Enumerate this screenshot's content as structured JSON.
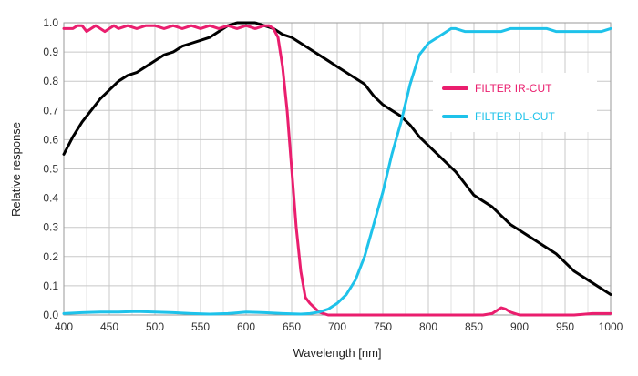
{
  "chart_data": {
    "type": "line",
    "title": "",
    "xlabel": "Wavelength [nm]",
    "ylabel": "Relative response",
    "xlim": [
      400,
      1000
    ],
    "ylim": [
      0,
      1.0
    ],
    "xticks": [
      400,
      450,
      500,
      550,
      600,
      650,
      700,
      750,
      800,
      850,
      900,
      950,
      1000
    ],
    "xtick_labels": [
      "400",
      "450",
      "500",
      "550",
      "600",
      "650",
      "700",
      "750",
      "800",
      "850",
      "900",
      "950",
      "1000"
    ],
    "yticks": [
      0,
      0.1,
      0.2,
      0.3,
      0.4,
      0.5,
      0.6,
      0.7,
      0.8,
      0.9,
      1.0
    ],
    "ytick_labels": [
      "0.0",
      "0.1",
      "0.2",
      "0.3",
      "0.4",
      "0.5",
      "0.6",
      "0.7",
      "0.8",
      "0.9",
      "1.0"
    ],
    "grid": true,
    "legend_position": "right",
    "series": [
      {
        "name": "",
        "color": "#000000",
        "x": [
          400,
          410,
          420,
          430,
          440,
          450,
          460,
          470,
          480,
          490,
          500,
          510,
          520,
          530,
          540,
          550,
          560,
          570,
          580,
          590,
          600,
          610,
          620,
          630,
          640,
          650,
          660,
          670,
          680,
          690,
          700,
          710,
          720,
          730,
          740,
          750,
          760,
          770,
          780,
          790,
          800,
          810,
          820,
          830,
          840,
          850,
          860,
          870,
          880,
          890,
          900,
          910,
          920,
          930,
          940,
          950,
          960,
          970,
          980,
          990,
          1000
        ],
        "y": [
          0.55,
          0.61,
          0.66,
          0.7,
          0.74,
          0.77,
          0.8,
          0.82,
          0.83,
          0.85,
          0.87,
          0.89,
          0.9,
          0.92,
          0.93,
          0.94,
          0.95,
          0.97,
          0.99,
          1.0,
          1.0,
          1.0,
          0.99,
          0.98,
          0.96,
          0.95,
          0.93,
          0.91,
          0.89,
          0.87,
          0.85,
          0.83,
          0.81,
          0.79,
          0.75,
          0.72,
          0.7,
          0.68,
          0.65,
          0.61,
          0.58,
          0.55,
          0.52,
          0.49,
          0.45,
          0.41,
          0.39,
          0.37,
          0.34,
          0.31,
          0.29,
          0.27,
          0.25,
          0.23,
          0.21,
          0.18,
          0.15,
          0.13,
          0.11,
          0.09,
          0.07
        ]
      },
      {
        "name": "FILTER IR-CUT",
        "color": "#ea1e6e",
        "x": [
          400,
          405,
          410,
          415,
          420,
          425,
          430,
          435,
          440,
          445,
          450,
          455,
          460,
          470,
          480,
          490,
          500,
          510,
          520,
          530,
          540,
          550,
          560,
          570,
          580,
          590,
          600,
          610,
          620,
          625,
          630,
          635,
          640,
          645,
          650,
          655,
          660,
          665,
          670,
          680,
          690,
          700,
          720,
          740,
          760,
          780,
          800,
          820,
          840,
          860,
          870,
          875,
          880,
          885,
          890,
          895,
          900,
          920,
          940,
          960,
          980,
          1000
        ],
        "y": [
          0.98,
          0.98,
          0.98,
          0.99,
          0.99,
          0.97,
          0.98,
          0.99,
          0.98,
          0.97,
          0.98,
          0.99,
          0.98,
          0.99,
          0.98,
          0.99,
          0.99,
          0.98,
          0.99,
          0.98,
          0.99,
          0.98,
          0.99,
          0.98,
          0.99,
          0.98,
          0.99,
          0.98,
          0.99,
          0.99,
          0.98,
          0.95,
          0.85,
          0.7,
          0.5,
          0.3,
          0.15,
          0.06,
          0.04,
          0.01,
          0.0,
          0.0,
          0.0,
          0.0,
          0.0,
          0.0,
          0.0,
          0.0,
          0.0,
          0.0,
          0.005,
          0.015,
          0.025,
          0.02,
          0.01,
          0.005,
          0.0,
          0.0,
          0.0,
          0.0,
          0.005,
          0.005
        ]
      },
      {
        "name": "FILTER DL-CUT",
        "color": "#1ec2ea",
        "x": [
          400,
          420,
          440,
          460,
          480,
          500,
          520,
          540,
          560,
          580,
          600,
          620,
          640,
          660,
          670,
          680,
          690,
          700,
          710,
          720,
          730,
          740,
          750,
          760,
          770,
          780,
          790,
          800,
          810,
          820,
          825,
          830,
          840,
          850,
          860,
          870,
          880,
          890,
          900,
          910,
          920,
          930,
          940,
          950,
          960,
          970,
          980,
          990,
          1000
        ],
        "y": [
          0.005,
          0.008,
          0.01,
          0.01,
          0.012,
          0.01,
          0.008,
          0.005,
          0.003,
          0.005,
          0.01,
          0.008,
          0.005,
          0.003,
          0.005,
          0.01,
          0.02,
          0.04,
          0.07,
          0.12,
          0.2,
          0.31,
          0.42,
          0.55,
          0.66,
          0.79,
          0.89,
          0.93,
          0.95,
          0.97,
          0.98,
          0.98,
          0.97,
          0.97,
          0.97,
          0.97,
          0.97,
          0.98,
          0.98,
          0.98,
          0.98,
          0.98,
          0.97,
          0.97,
          0.97,
          0.97,
          0.97,
          0.97,
          0.98
        ]
      }
    ]
  }
}
